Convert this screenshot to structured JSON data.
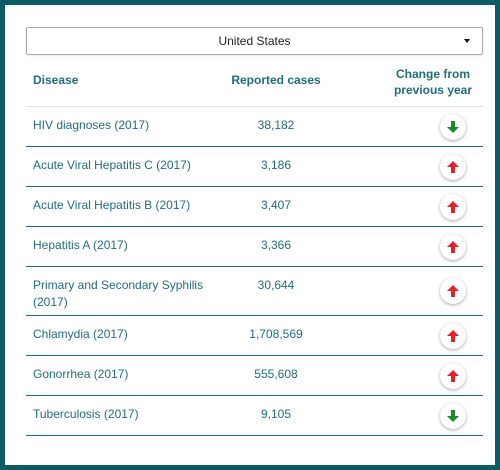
{
  "region_select": {
    "value": "United States"
  },
  "table": {
    "headers": {
      "disease": "Disease",
      "cases": "Reported cases",
      "change_line1": "Change from",
      "change_line2": "previous year"
    },
    "rows": [
      {
        "disease": "HIV diagnoses (2017)",
        "cases": "38,182",
        "change": "down"
      },
      {
        "disease": "Acute Viral Hepatitis C (2017)",
        "cases": "3,186",
        "change": "up"
      },
      {
        "disease": "Acute Viral Hepatitis B (2017)",
        "cases": "3,407",
        "change": "up"
      },
      {
        "disease": "Hepatitis A (2017)",
        "cases": "3,366",
        "change": "up"
      },
      {
        "disease": "Primary and Secondary Syphilis (2017)",
        "cases": "30,644",
        "change": "up"
      },
      {
        "disease": "Chlamydia (2017)",
        "cases": "1,708,569",
        "change": "up"
      },
      {
        "disease": "Gonorrhea (2017)",
        "cases": "555,608",
        "change": "up"
      },
      {
        "disease": "Tuberculosis (2017)",
        "cases": "9,105",
        "change": "down"
      }
    ]
  },
  "colors": {
    "frame": "#0d5c63",
    "text": "#1f6e7c",
    "up_arrow": "#e4202a",
    "down_arrow": "#1a8a2a"
  },
  "icons": {
    "up": "arrow-up-icon",
    "down": "arrow-down-icon"
  }
}
